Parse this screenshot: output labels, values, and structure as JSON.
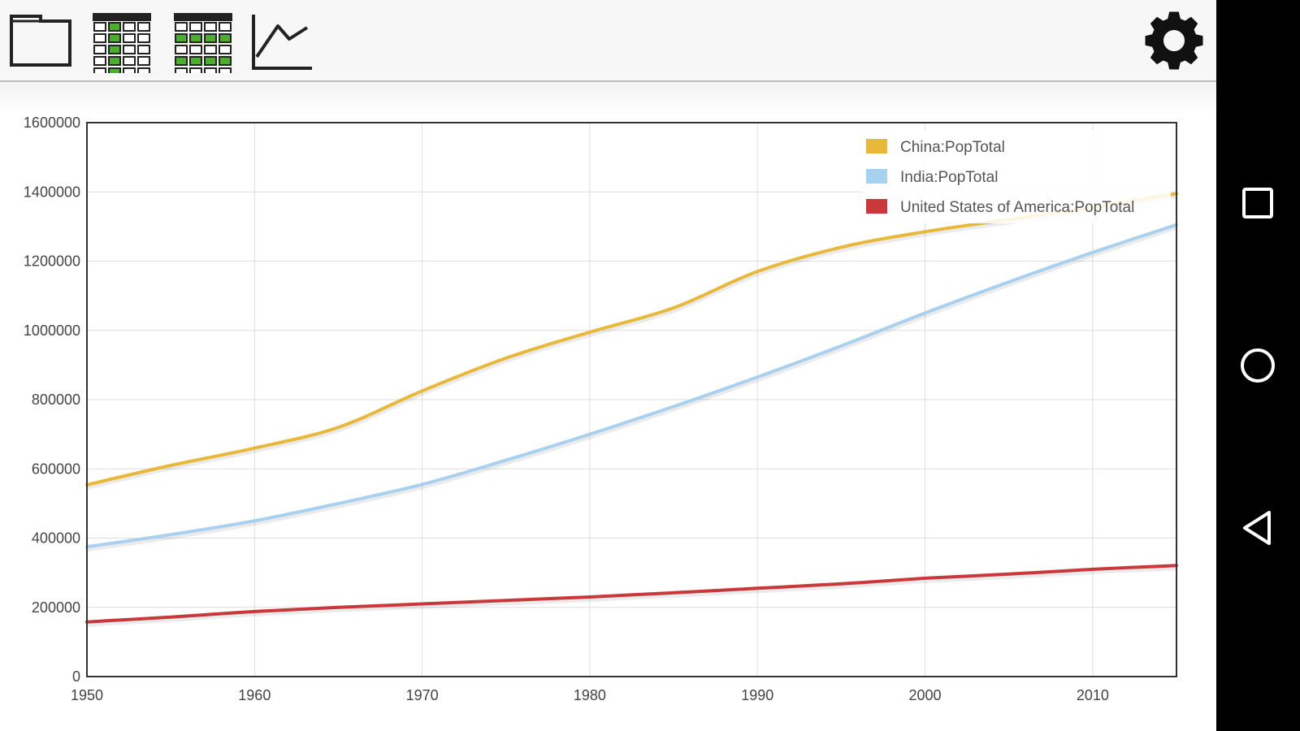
{
  "toolbar": {
    "buttons": [
      {
        "name": "open-folder-button",
        "icon": "folder-icon"
      },
      {
        "name": "table-columns-button",
        "icon": "table-columns-icon"
      },
      {
        "name": "table-rows-button",
        "icon": "table-rows-icon"
      },
      {
        "name": "line-chart-button",
        "icon": "line-chart-icon"
      }
    ],
    "settings_icon": "gear-icon"
  },
  "colors": {
    "china": "#e8b83a",
    "india": "#a8d1f0",
    "usa": "#c9383a",
    "grid": "#dddddd",
    "axis": "#333333",
    "accent_green": "#4caf2a"
  },
  "chart_data": {
    "type": "line",
    "xlim": [
      1950,
      2015
    ],
    "ylim": [
      0,
      1600000
    ],
    "x_ticks": [
      "1950",
      "1960",
      "1970",
      "1980",
      "1990",
      "2000",
      "2010"
    ],
    "y_ticks": [
      "0",
      "200000",
      "400000",
      "600000",
      "800000",
      "1000000",
      "1200000",
      "1400000",
      "1600000"
    ],
    "grid": true,
    "legend_position": "top-right",
    "x": [
      1950,
      1955,
      1960,
      1965,
      1970,
      1975,
      1980,
      1985,
      1990,
      1995,
      2000,
      2005,
      2010,
      2015
    ],
    "series": [
      {
        "name": "China:PopTotal",
        "color_key": "china",
        "values": [
          554000,
          610000,
          660000,
          720000,
          825000,
          920000,
          995000,
          1065000,
          1170000,
          1240000,
          1285000,
          1320000,
          1355000,
          1395000
        ]
      },
      {
        "name": "India:PopTotal",
        "color_key": "india",
        "values": [
          375000,
          410000,
          450000,
          500000,
          555000,
          625000,
          700000,
          780000,
          865000,
          955000,
          1050000,
          1140000,
          1225000,
          1305000
        ]
      },
      {
        "name": "United States of America:PopTotal",
        "color_key": "usa",
        "values": [
          158000,
          172000,
          188000,
          200000,
          210000,
          220000,
          230000,
          242000,
          255000,
          268000,
          284000,
          296000,
          310000,
          321000
        ]
      }
    ]
  },
  "navigation": {
    "buttons": [
      {
        "name": "recent-apps-button",
        "icon": "square-icon"
      },
      {
        "name": "home-button",
        "icon": "circle-icon"
      },
      {
        "name": "back-button",
        "icon": "triangle-back-icon"
      }
    ]
  }
}
